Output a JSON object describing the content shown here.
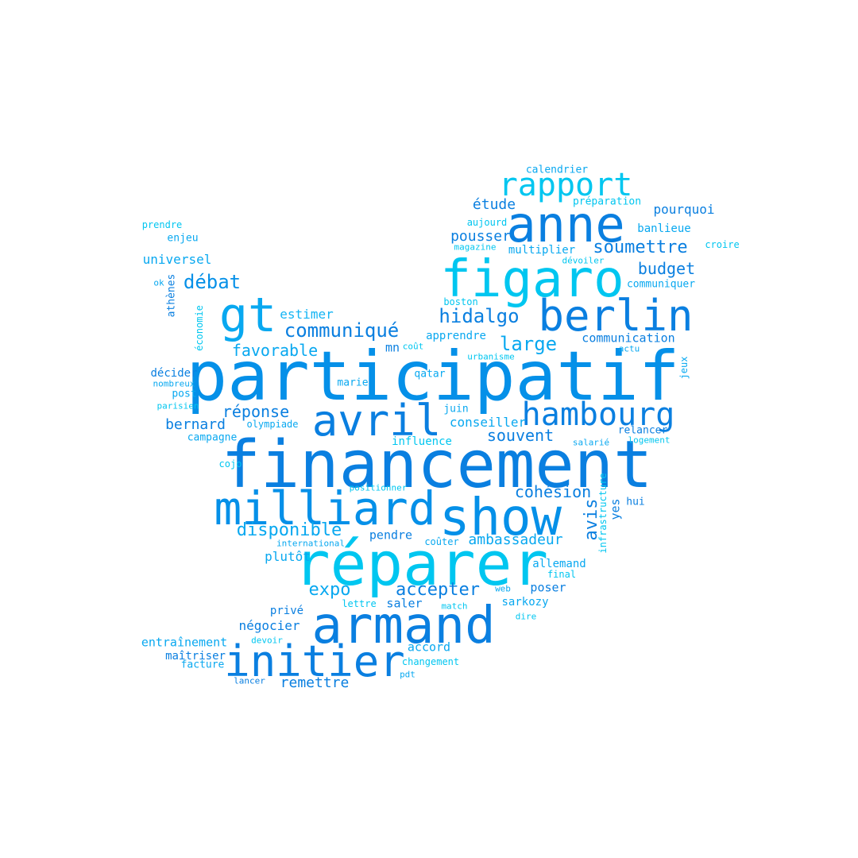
{
  "words": {
    "participatif": "participatif",
    "financement": "financement",
    "reparer": "réparer",
    "show": "show",
    "milliard": "milliard",
    "armand": "armand",
    "initier": "initier",
    "avril": "avril",
    "figaro": "figaro",
    "anne": "anne",
    "berlin": "berlin",
    "gt": "gt",
    "hambourg": "hambourg",
    "rapport": "rapport",
    "communique": "communiqué",
    "debat": "débat",
    "hidalgo": "hidalgo",
    "soumettre": "soumettre",
    "budget": "budget",
    "pousser": "pousser",
    "etude": "étude",
    "large": "large",
    "favorable": "favorable",
    "reponse": "réponse",
    "souvent": "souvent",
    "bernard": "bernard",
    "disponible": "disponible",
    "cohesion": "cohésion",
    "expo": "expo",
    "accepter": "accepter",
    "ambassadeur": "ambassadeur",
    "avis": "avis",
    "negocier": "négocier",
    "remettre": "remettre",
    "universel": "universel",
    "estimer": "estimer",
    "pourquoi": "pourquoi",
    "communication": "communication",
    "conseiller": "conseiller",
    "plutot": "plutôt",
    "pendre": "pendre",
    "yes": "yes",
    "poser": "poser",
    "allemand": "allemand",
    "sarkozy": "sarkozy",
    "saler": "saler",
    "entrainement": "entraînement",
    "accord": "accord",
    "banlieue": "banlieue",
    "multiplier": "multiplier",
    "calendrier": "calendrier",
    "preparation": "préparation",
    "apprendre": "apprendre",
    "influence": "influence",
    "relancer": "relancer",
    "communiquer": "communiquer",
    "decider": "décider",
    "campagne": "campagne",
    "prive": "privé",
    "maitriser": "maîtriser",
    "facture": "facture",
    "mn": "mn",
    "enjeu": "enjeu",
    "prendre": "prendre",
    "athenes": "athènes",
    "economie": "économie",
    "hui": "hui",
    "infrastructure": "infrastructure",
    "post": "post",
    "nombreux": "nombreux",
    "parisien": "parisien",
    "olympiade": "olympiade",
    "marie": "marie",
    "qatar": "qatar",
    "juin": "juin",
    "cojo": "cojo",
    "positionner": "positionner",
    "international": "international",
    "couter": "coûter",
    "final": "final",
    "web": "web",
    "lettre": "lettre",
    "match": "match",
    "dire": "dire",
    "devoir": "devoir",
    "changement": "changement",
    "pdt": "pdt",
    "lancer": "lancer",
    "aujourd": "aujourd",
    "magazine": "magazine",
    "devoiler": "dévoiler",
    "croire": "croire",
    "boston": "boston",
    "ok": "ok",
    "cout": "coût",
    "urbanisme": "urbanisme",
    "actu": "actu",
    "jeux": "jeux",
    "salarie": "salarié",
    "logement": "logement"
  },
  "palette": {
    "deep_blue": "#0a7fe0",
    "mid_blue": "#1a90ee",
    "sky_blue": "#08a8f0",
    "cyan": "#00c6f0",
    "light_blue": "#14b4f4",
    "azure": "#0590e8"
  }
}
